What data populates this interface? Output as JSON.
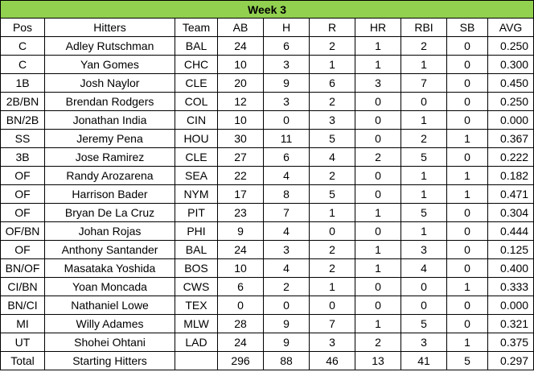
{
  "title": "Week 3",
  "headers": [
    "Pos",
    "Hitters",
    "Team",
    "AB",
    "H",
    "R",
    "HR",
    "RBI",
    "SB",
    "AVG"
  ],
  "rows": [
    [
      "C",
      "Adley Rutschman",
      "BAL",
      "24",
      "6",
      "2",
      "1",
      "2",
      "0",
      "0.250"
    ],
    [
      "C",
      "Yan Gomes",
      "CHC",
      "10",
      "3",
      "1",
      "1",
      "1",
      "0",
      "0.300"
    ],
    [
      "1B",
      "Josh Naylor",
      "CLE",
      "20",
      "9",
      "6",
      "3",
      "7",
      "0",
      "0.450"
    ],
    [
      "2B/BN",
      "Brendan Rodgers",
      "COL",
      "12",
      "3",
      "2",
      "0",
      "0",
      "0",
      "0.250"
    ],
    [
      "BN/2B",
      "Jonathan India",
      "CIN",
      "10",
      "0",
      "3",
      "0",
      "1",
      "0",
      "0.000"
    ],
    [
      "SS",
      "Jeremy Pena",
      "HOU",
      "30",
      "11",
      "5",
      "0",
      "2",
      "1",
      "0.367"
    ],
    [
      "3B",
      "Jose Ramirez",
      "CLE",
      "27",
      "6",
      "4",
      "2",
      "5",
      "0",
      "0.222"
    ],
    [
      "OF",
      "Randy Arozarena",
      "SEA",
      "22",
      "4",
      "2",
      "0",
      "1",
      "1",
      "0.182"
    ],
    [
      "OF",
      "Harrison Bader",
      "NYM",
      "17",
      "8",
      "5",
      "0",
      "1",
      "1",
      "0.471"
    ],
    [
      "OF",
      "Bryan De La Cruz",
      "PIT",
      "23",
      "7",
      "1",
      "1",
      "5",
      "0",
      "0.304"
    ],
    [
      "OF/BN",
      "Johan Rojas",
      "PHI",
      "9",
      "4",
      "0",
      "0",
      "1",
      "0",
      "0.444"
    ],
    [
      "OF",
      "Anthony Santander",
      "BAL",
      "24",
      "3",
      "2",
      "1",
      "3",
      "0",
      "0.125"
    ],
    [
      "BN/OF",
      "Masataka Yoshida",
      "BOS",
      "10",
      "4",
      "2",
      "1",
      "4",
      "0",
      "0.400"
    ],
    [
      "CI/BN",
      "Yoan Moncada",
      "CWS",
      "6",
      "2",
      "1",
      "0",
      "0",
      "1",
      "0.333"
    ],
    [
      "BN/CI",
      "Nathaniel Lowe",
      "TEX",
      "0",
      "0",
      "0",
      "0",
      "0",
      "0",
      "0.000"
    ],
    [
      "MI",
      "Willy Adames",
      "MLW",
      "28",
      "9",
      "7",
      "1",
      "5",
      "0",
      "0.321"
    ],
    [
      "UT",
      "Shohei Ohtani",
      "LAD",
      "24",
      "9",
      "3",
      "2",
      "3",
      "1",
      "0.375"
    ]
  ],
  "total": [
    "Total",
    "Starting Hitters",
    "",
    "296",
    "88",
    "46",
    "13",
    "41",
    "5",
    "0.297"
  ],
  "colors": {
    "title_bg": "#92d050",
    "border": "#000000",
    "text": "#000000"
  }
}
